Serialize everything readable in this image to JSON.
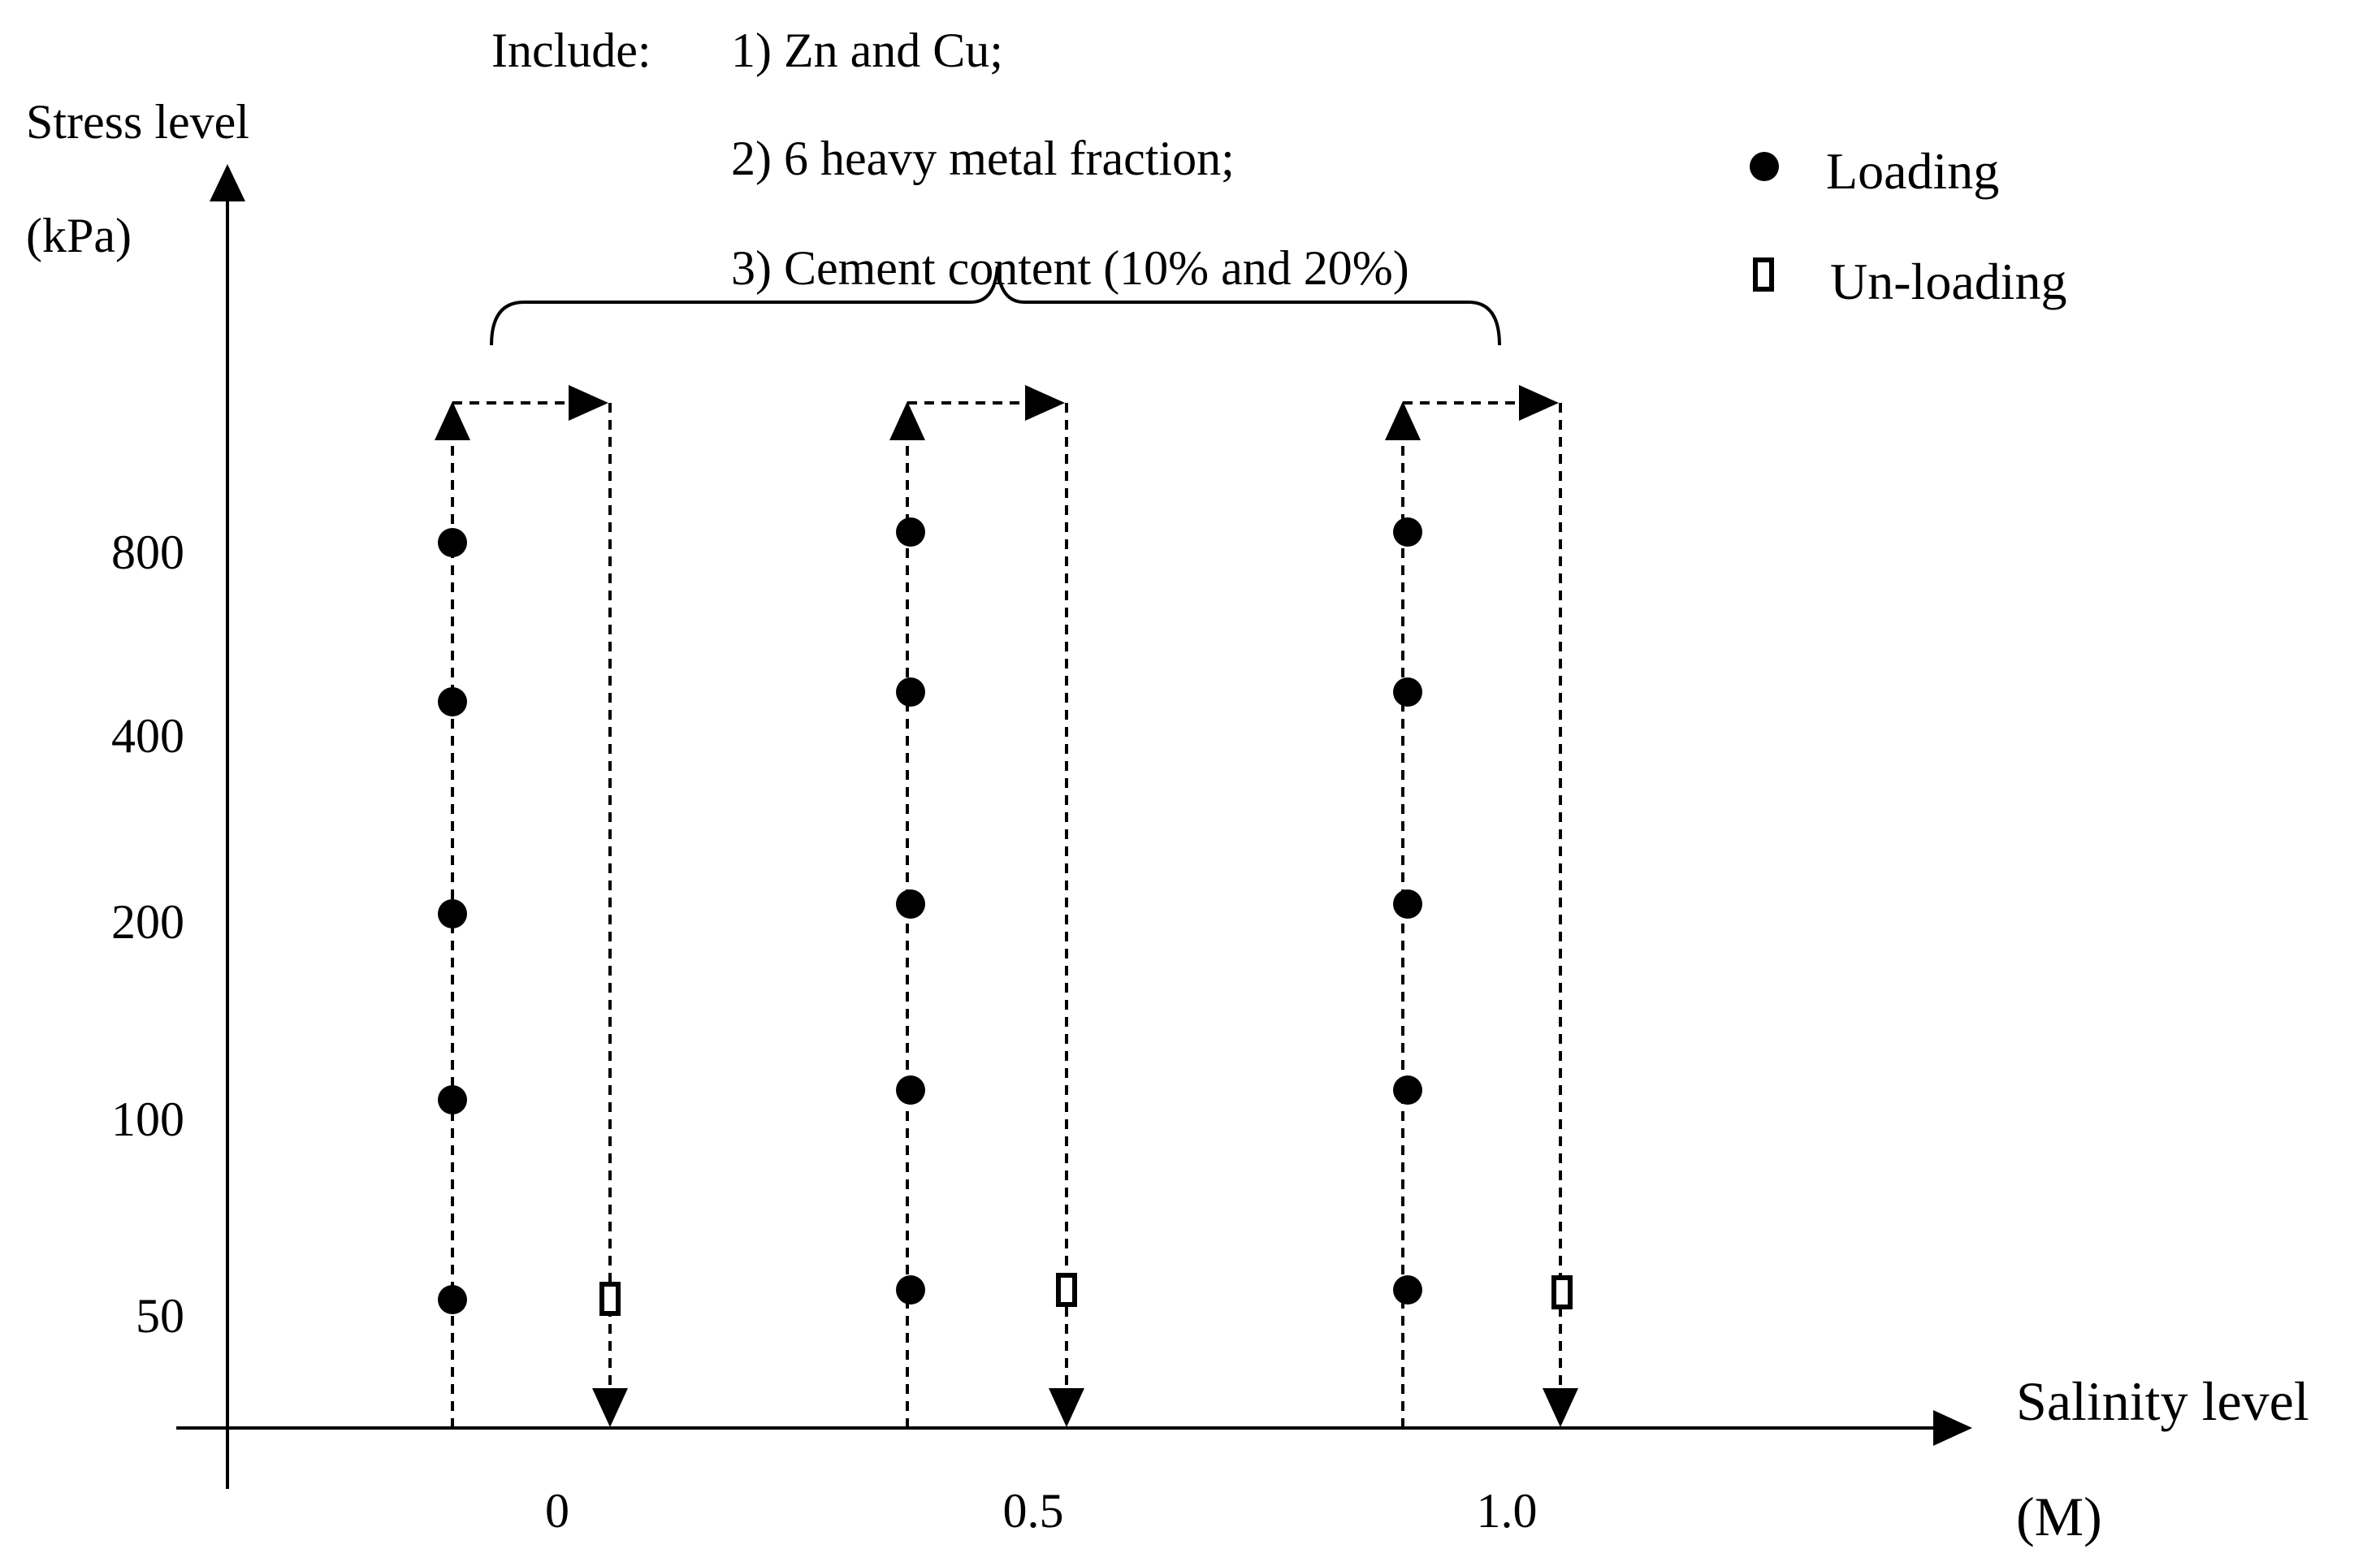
{
  "diagram": {
    "y_axis": {
      "title": "Stress level",
      "unit": "(kPa)",
      "ticks": [
        "800",
        "400",
        "200",
        "100",
        "50"
      ]
    },
    "x_axis": {
      "title": "Salinity level",
      "unit": "(M)",
      "ticks": [
        "0",
        "0.5",
        "1.0"
      ]
    },
    "include": {
      "label": "Include:",
      "items": [
        "1) Zn and Cu;",
        "2) 6 heavy metal fraction;",
        "3) Cement content (10% and 20%)"
      ]
    },
    "legend": [
      {
        "label": "Loading",
        "marker": "filled-circle"
      },
      {
        "label": "Un-loading",
        "marker": "open-square"
      }
    ],
    "colors": {
      "ink": "#000000",
      "background": "#ffffff"
    }
  }
}
